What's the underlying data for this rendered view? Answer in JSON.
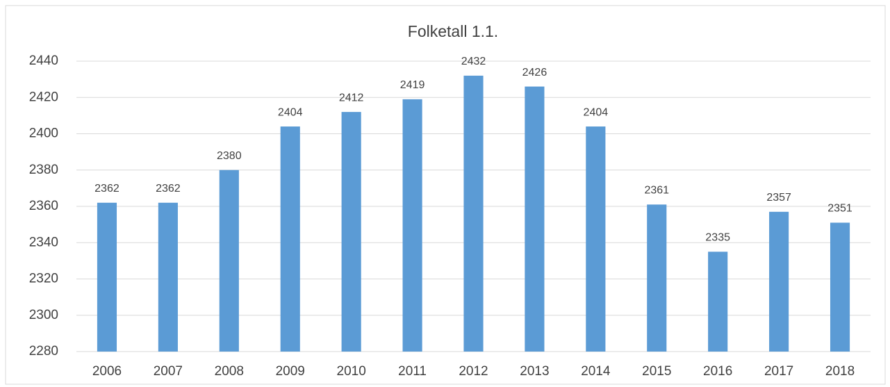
{
  "chart_data": {
    "type": "bar",
    "title": "Folketall 1.1.",
    "categories": [
      "2006",
      "2007",
      "2008",
      "2009",
      "2010",
      "2011",
      "2012",
      "2013",
      "2014",
      "2015",
      "2016",
      "2017",
      "2018"
    ],
    "values": [
      2362,
      2362,
      2380,
      2404,
      2412,
      2419,
      2432,
      2426,
      2404,
      2361,
      2335,
      2357,
      2351
    ],
    "color": "#5b9bd5",
    "ylim": [
      2280,
      2440
    ],
    "yticks": [
      2280,
      2300,
      2320,
      2340,
      2360,
      2380,
      2400,
      2420,
      2440
    ],
    "grid": true
  }
}
